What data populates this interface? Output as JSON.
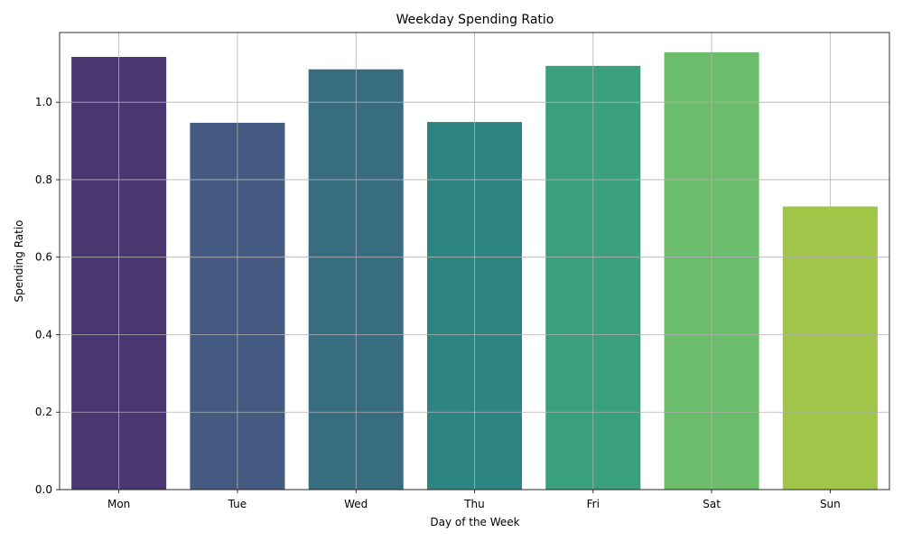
{
  "chart_data": {
    "type": "bar",
    "title": "Weekday Spending Ratio",
    "xlabel": "Day of the Week",
    "ylabel": "Spending Ratio",
    "categories": [
      "Mon",
      "Tue",
      "Wed",
      "Thu",
      "Fri",
      "Sat",
      "Sun"
    ],
    "values": [
      1.117,
      0.947,
      1.085,
      0.949,
      1.094,
      1.129,
      0.731
    ],
    "colors": [
      "#4a3670",
      "#455a80",
      "#386c80",
      "#2e8480",
      "#3a9f7c",
      "#6bbd6c",
      "#a1c548"
    ],
    "ylim": [
      0,
      1.18
    ],
    "yticks": [
      "0.0",
      "0.2",
      "0.4",
      "0.6",
      "0.8",
      "1.0"
    ],
    "grid": true
  }
}
